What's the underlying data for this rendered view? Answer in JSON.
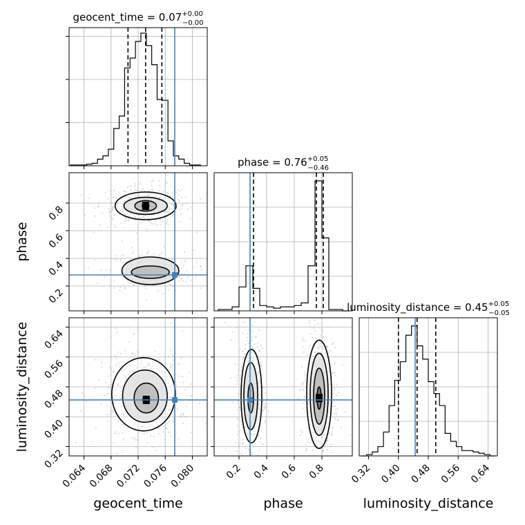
{
  "chart_data": {
    "type": "corner",
    "parameters": [
      "geocent_time",
      "phase",
      "luminosity_distance"
    ],
    "truths": [
      0.0774,
      0.28,
      0.445
    ],
    "colors": {
      "truth": "#4682b4",
      "hist": "#000000",
      "grid": "#b0b0b0",
      "points": "#a0a0a0"
    },
    "diagonal": [
      {
        "parameter": "geocent_time",
        "title": {
          "prefix": "geocent_time = 0.07",
          "sup": "+0.00",
          "sub": "−0.00"
        },
        "quantiles": [
          0.0705,
          0.0731,
          0.0755
        ],
        "xlim": [
          0.0618,
          0.0822
        ],
        "yticks": [
          50,
          100,
          150
        ],
        "ylim": [
          0,
          160
        ],
        "bin_edges": [
          0.062,
          0.0628,
          0.0636,
          0.0644,
          0.0652,
          0.066,
          0.0668,
          0.0676,
          0.0684,
          0.0692,
          0.07,
          0.0708,
          0.0716,
          0.0724,
          0.0732,
          0.074,
          0.0748,
          0.0756,
          0.0764,
          0.0772,
          0.078,
          0.0788,
          0.0796,
          0.0804,
          0.0812
        ],
        "counts": [
          1,
          1,
          1,
          2,
          3,
          8,
          12,
          20,
          45,
          60,
          118,
          130,
          150,
          160,
          145,
          122,
          80,
          79,
          30,
          12,
          8,
          3,
          1,
          1
        ]
      },
      {
        "parameter": "phase",
        "title": {
          "prefix": "phase = 0.76",
          "sup": "+0.05",
          "sub": "−0.46"
        },
        "quantiles": [
          0.305,
          0.76,
          0.81
        ],
        "xlim": [
          0.02,
          1.02
        ],
        "ylim": [
          0,
          1
        ],
        "bin_edges": [
          0.05,
          0.1,
          0.15,
          0.2,
          0.25,
          0.3,
          0.35,
          0.4,
          0.45,
          0.5,
          0.55,
          0.6,
          0.65,
          0.7,
          0.75,
          0.8,
          0.85,
          0.9,
          0.95,
          1.0
        ],
        "counts": [
          0.01,
          0.01,
          0.03,
          0.18,
          0.34,
          0.17,
          0.04,
          0.03,
          0.02,
          0.03,
          0.03,
          0.04,
          0.06,
          0.34,
          0.98,
          0.55,
          0.01,
          0.01,
          0.0
        ]
      },
      {
        "parameter": "luminosity_distance",
        "title": {
          "prefix": "luminosity_distance = 0.45",
          "sup": "+0.05",
          "sub": "−0.05"
        },
        "quantiles": [
          0.4,
          0.45,
          0.5
        ],
        "xlim": [
          0.295,
          0.665
        ],
        "ylim": [
          0,
          1
        ],
        "bin_edges": [
          0.3,
          0.315,
          0.33,
          0.345,
          0.36,
          0.375,
          0.39,
          0.405,
          0.42,
          0.435,
          0.45,
          0.465,
          0.48,
          0.495,
          0.51,
          0.525,
          0.54,
          0.555,
          0.57,
          0.585,
          0.6,
          0.615,
          0.63,
          0.645,
          0.66
        ],
        "counts": [
          0.0,
          0.01,
          0.03,
          0.07,
          0.18,
          0.38,
          0.57,
          0.71,
          0.91,
          0.98,
          0.83,
          0.73,
          0.56,
          0.47,
          0.38,
          0.17,
          0.11,
          0.07,
          0.04,
          0.04,
          0.03,
          0.02,
          0.01,
          0.0
        ]
      }
    ],
    "off_diagonal": [
      {
        "x": "geocent_time",
        "y": "phase",
        "contours": [
          {
            "cx": 0.0731,
            "cy": 0.78,
            "rx": 0.0005,
            "ry": 0.015,
            "level": 1
          },
          {
            "cx": 0.0731,
            "cy": 0.78,
            "rx": 0.0016,
            "ry": 0.038,
            "level": 2
          },
          {
            "cx": 0.0731,
            "cy": 0.78,
            "rx": 0.0032,
            "ry": 0.062,
            "level": 3
          },
          {
            "cx": 0.0731,
            "cy": 0.78,
            "rx": 0.0045,
            "ry": 0.1,
            "level": 4
          },
          {
            "cx": 0.0738,
            "cy": 0.3,
            "rx": 0.0028,
            "ry": 0.045,
            "level": 2
          },
          {
            "cx": 0.0738,
            "cy": 0.31,
            "rx": 0.0042,
            "ry": 0.1,
            "level": 3
          }
        ],
        "xlim": [
          0.0618,
          0.0822
        ],
        "ylim": [
          0.02,
          1.02
        ]
      },
      {
        "x": "geocent_time",
        "y": "luminosity_distance",
        "contours": [
          {
            "cx": 0.0732,
            "cy": 0.445,
            "rx": 0.0005,
            "ry": 0.01,
            "level": 1
          },
          {
            "cx": 0.0732,
            "cy": 0.45,
            "rx": 0.0018,
            "ry": 0.04,
            "level": 2
          },
          {
            "cx": 0.073,
            "cy": 0.455,
            "rx": 0.0033,
            "ry": 0.07,
            "level": 3
          },
          {
            "cx": 0.0728,
            "cy": 0.46,
            "rx": 0.0047,
            "ry": 0.098,
            "level": 4
          }
        ],
        "xlim": [
          0.0618,
          0.0822
        ],
        "ylim": [
          0.295,
          0.665
        ]
      },
      {
        "x": "phase",
        "y": "luminosity_distance",
        "contours": [
          {
            "cx": 0.285,
            "cy": 0.45,
            "rx": 0.02,
            "ry": 0.04,
            "level": 2
          },
          {
            "cx": 0.285,
            "cy": 0.455,
            "rx": 0.05,
            "ry": 0.09,
            "level": 3
          },
          {
            "cx": 0.29,
            "cy": 0.455,
            "rx": 0.075,
            "ry": 0.125,
            "level": 4
          },
          {
            "cx": 0.78,
            "cy": 0.45,
            "rx": 0.015,
            "ry": 0.03,
            "level": 1
          },
          {
            "cx": 0.78,
            "cy": 0.455,
            "rx": 0.04,
            "ry": 0.075,
            "level": 2
          },
          {
            "cx": 0.78,
            "cy": 0.46,
            "rx": 0.065,
            "ry": 0.11,
            "level": 3
          },
          {
            "cx": 0.78,
            "cy": 0.46,
            "rx": 0.09,
            "ry": 0.145,
            "level": 4
          }
        ],
        "xlim": [
          0.02,
          1.02
        ],
        "ylim": [
          0.295,
          0.665
        ]
      }
    ],
    "axes": {
      "geocent_time": {
        "ticks": [
          0.064,
          0.068,
          0.072,
          0.076,
          0.08
        ],
        "tick_labels": [
          "0.064",
          "0.068",
          "0.072",
          "0.076",
          "0.080"
        ]
      },
      "phase": {
        "ticks": [
          0.2,
          0.4,
          0.6,
          0.8
        ],
        "tick_labels": [
          "0.2",
          "0.4",
          "0.6",
          "0.8"
        ]
      },
      "luminosity_distance": {
        "ticks": [
          0.32,
          0.4,
          0.48,
          0.56,
          0.64
        ],
        "tick_labels": [
          "0.32",
          "0.40",
          "0.48",
          "0.56",
          "0.64"
        ]
      }
    },
    "xlabels": [
      "geocent_time",
      "phase",
      "luminosity_distance"
    ],
    "ylabels": [
      "",
      "phase",
      "luminosity_distance"
    ],
    "grid": true
  }
}
